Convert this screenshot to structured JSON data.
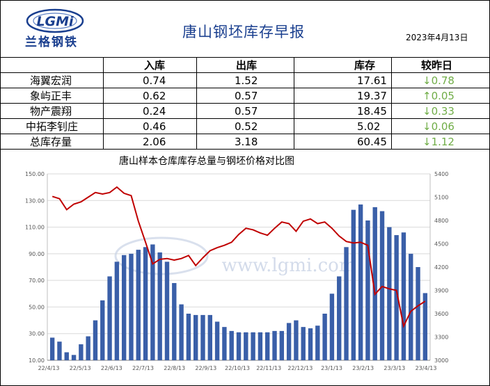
{
  "header": {
    "logo_text": "LGMi",
    "logo_subtitle": "兰格钢铁",
    "title": "唐山钢坯库存早报",
    "date": "2023年4月13日"
  },
  "table": {
    "columns": [
      "",
      "入库",
      "出库",
      "库存",
      "较昨日"
    ],
    "rows": [
      {
        "name": "海翼宏润",
        "in": "0.74",
        "out": "1.52",
        "stock": "17.61",
        "change": "↓0.78"
      },
      {
        "name": "象屿正丰",
        "in": "0.62",
        "out": "0.57",
        "stock": "19.37",
        "change": "↑0.05"
      },
      {
        "name": "物产震翔",
        "in": "0.24",
        "out": "0.57",
        "stock": "18.45",
        "change": "↓0.33"
      },
      {
        "name": "中拓李钊庄",
        "in": "0.46",
        "out": "0.52",
        "stock": "5.02",
        "change": "↓0.06"
      },
      {
        "name": "总库存量",
        "in": "2.06",
        "out": "3.18",
        "stock": "60.45",
        "change": "↓1.12"
      }
    ]
  },
  "chart_data": {
    "type": "bar",
    "title": "唐山样本仓库库存总量与钢坯价格对比图",
    "watermark": "www.lgmi.com",
    "x_tick_labels": [
      "22/4/13",
      "22/5/13",
      "22/6/13",
      "22/7/13",
      "22/8/13",
      "22/9/13",
      "22/10/13",
      "22/11/13",
      "22/12/13",
      "23/1/13",
      "23/2/13",
      "23/3/13",
      "23/4/13"
    ],
    "y_left": {
      "min": 10,
      "max": 150,
      "ticks": [
        "10.00",
        "30.00",
        "50.00",
        "70.00",
        "90.00",
        "110.00",
        "130.00",
        "150.00"
      ]
    },
    "y_right": {
      "min": 3000,
      "max": 5400,
      "ticks": [
        "3000",
        "3300",
        "3600",
        "3900",
        "4200",
        "4500",
        "4800",
        "5100",
        "5400"
      ]
    },
    "bar_color": "#3a5fa8",
    "line_color": "#c00000",
    "inventory_series": {
      "name": "库存",
      "x": [
        "22/4/13",
        "22/4/20",
        "22/4/27",
        "22/5/4",
        "22/5/11",
        "22/5/18",
        "22/5/25",
        "22/6/1",
        "22/6/8",
        "22/6/15",
        "22/6/22",
        "22/6/29",
        "22/7/6",
        "22/7/13",
        "22/7/20",
        "22/7/27",
        "22/8/3",
        "22/8/10",
        "22/8/17",
        "22/8/24",
        "22/8/31",
        "22/9/7",
        "22/9/14",
        "22/9/21",
        "22/9/28",
        "22/10/5",
        "22/10/12",
        "22/10/19",
        "22/10/26",
        "22/11/2",
        "22/11/9",
        "22/11/16",
        "22/11/23",
        "22/11/30",
        "22/12/7",
        "22/12/14",
        "22/12/21",
        "22/12/28",
        "23/1/4",
        "23/1/11",
        "23/1/18",
        "23/1/25",
        "23/2/1",
        "23/2/8",
        "23/2/15",
        "23/2/22",
        "23/3/1",
        "23/3/8",
        "23/3/15",
        "23/3/22",
        "23/3/29",
        "23/4/5",
        "23/4/13"
      ],
      "values": [
        27,
        24,
        16,
        14,
        22,
        28,
        40,
        55,
        73,
        84,
        89,
        90,
        93,
        95,
        97,
        91,
        84,
        68,
        52,
        45,
        44,
        44,
        44,
        39,
        35,
        32,
        31,
        31,
        31,
        31,
        31,
        32,
        32,
        38,
        40,
        35,
        34,
        36,
        45,
        60,
        73,
        95,
        123,
        127,
        115,
        125,
        122,
        110,
        104,
        106,
        90,
        80,
        60.45
      ]
    },
    "price_series": {
      "name": "钢坯价格",
      "x": [
        "22/4/13",
        "22/4/20",
        "22/4/27",
        "22/5/4",
        "22/5/11",
        "22/5/18",
        "22/5/25",
        "22/6/1",
        "22/6/8",
        "22/6/15",
        "22/6/22",
        "22/6/29",
        "22/7/6",
        "22/7/13",
        "22/7/20",
        "22/7/27",
        "22/8/3",
        "22/8/10",
        "22/8/17",
        "22/8/24",
        "22/8/31",
        "22/9/7",
        "22/9/14",
        "22/9/21",
        "22/9/28",
        "22/10/5",
        "22/10/12",
        "22/10/19",
        "22/10/26",
        "22/11/2",
        "22/11/9",
        "22/11/16",
        "22/11/23",
        "22/11/30",
        "22/12/7",
        "22/12/14",
        "22/12/21",
        "22/12/28",
        "23/1/4",
        "23/1/11",
        "23/1/18",
        "23/1/25",
        "23/2/1",
        "23/2/8",
        "23/2/15",
        "23/2/22",
        "23/3/1",
        "23/3/8",
        "23/3/15",
        "23/3/22",
        "23/3/29",
        "23/4/5",
        "23/4/13"
      ],
      "values": [
        5110,
        5080,
        4940,
        5010,
        5040,
        5100,
        5160,
        5140,
        5160,
        5230,
        5150,
        5120,
        4790,
        4520,
        4240,
        4300,
        4310,
        4290,
        4310,
        4350,
        4220,
        4320,
        4410,
        4450,
        4480,
        4520,
        4620,
        4700,
        4680,
        4640,
        4610,
        4700,
        4780,
        4760,
        4660,
        4790,
        4820,
        4760,
        4780,
        4700,
        4600,
        4530,
        4510,
        4520,
        4480,
        3850,
        3950,
        3920,
        3900,
        3440,
        3630,
        3700,
        3760
      ]
    }
  }
}
